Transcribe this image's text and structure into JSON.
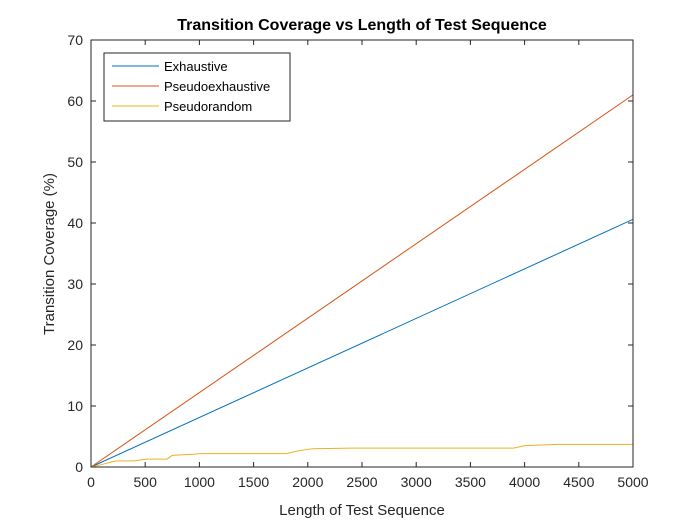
{
  "chart_data": {
    "type": "line",
    "title": "Transition Coverage vs Length of Test Sequence",
    "xlabel": "Length of Test Sequence",
    "ylabel": "Transition Coverage (%)",
    "xlim": [
      0,
      5000
    ],
    "ylim": [
      0,
      70
    ],
    "xticks": [
      0,
      500,
      1000,
      1500,
      2000,
      2500,
      3000,
      3500,
      4000,
      4500,
      5000
    ],
    "yticks": [
      0,
      10,
      20,
      30,
      40,
      50,
      60,
      70
    ],
    "grid": false,
    "legend_position": "top-left",
    "series": [
      {
        "name": "Exhaustive",
        "color": "#0072BD",
        "x": [
          0,
          5000
        ],
        "y": [
          0,
          40.6
        ]
      },
      {
        "name": "Pseudoexhaustive",
        "color": "#D95319",
        "x": [
          0,
          5000
        ],
        "y": [
          0,
          61.0
        ]
      },
      {
        "name": "Pseudorandom",
        "color": "#EDB120",
        "x": [
          0,
          100,
          200,
          250,
          400,
          480,
          520,
          700,
          750,
          850,
          950,
          1000,
          1200,
          1800,
          1900,
          2000,
          2050,
          2400,
          3000,
          3900,
          4000,
          4300,
          5000
        ],
        "y": [
          0,
          0.4,
          0.9,
          1.0,
          1.0,
          1.2,
          1.3,
          1.3,
          1.9,
          2.0,
          2.1,
          2.2,
          2.2,
          2.2,
          2.6,
          2.9,
          3.0,
          3.1,
          3.1,
          3.1,
          3.5,
          3.7,
          3.7
        ]
      }
    ]
  }
}
